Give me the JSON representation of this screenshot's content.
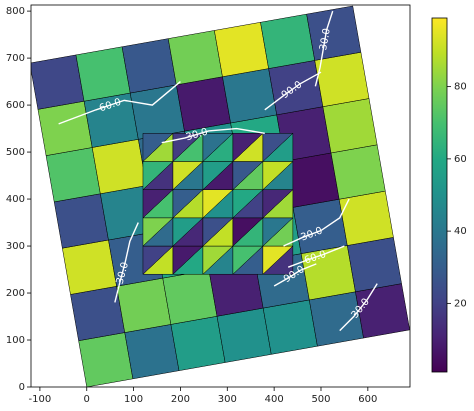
{
  "chart_data": {
    "type": "mesh",
    "xlim": [
      -119,
      690
    ],
    "ylim": [
      0,
      813
    ],
    "xticks": [
      -100,
      0,
      100,
      200,
      300,
      400,
      500,
      600
    ],
    "yticks": [
      0,
      100,
      200,
      300,
      400,
      500,
      600,
      700,
      800
    ],
    "colormap": "viridis",
    "clim": [
      1,
      99
    ],
    "cbar_ticks": [
      20,
      40,
      60,
      80
    ],
    "values": [
      [
        75,
        38,
        55,
        50,
        50,
        35,
        10
      ],
      [
        25,
        78,
        75,
        10,
        35,
        88,
        25
      ],
      [
        92,
        30,
        60,
        40,
        55,
        30,
        92
      ],
      [
        25,
        45,
        30,
        70,
        50,
        5,
        80
      ],
      [
        72,
        92,
        35,
        50,
        60,
        10,
        85
      ],
      [
        80,
        45,
        40,
        8,
        40,
        20,
        92
      ],
      [
        22,
        70,
        28,
        78,
        95,
        65,
        25
      ]
    ],
    "tri_values": [
      [
        90,
        20,
        60,
        8,
        45,
        85,
        30,
        70,
        15,
        95
      ],
      [
        35,
        80,
        12,
        55,
        90,
        25,
        65,
        5,
        78,
        40
      ],
      [
        70,
        10,
        88,
        30,
        50,
        95,
        20,
        60,
        85,
        12
      ],
      [
        15,
        65,
        40,
        92,
        8,
        55,
        75,
        28,
        45,
        90
      ],
      [
        85,
        30,
        70,
        18,
        62,
        38,
        92,
        10,
        55,
        25
      ]
    ],
    "contours": [
      {
        "label": "60.0",
        "points": [
          [
            -60,
            560
          ],
          [
            20,
            590
          ],
          [
            80,
            610
          ],
          [
            140,
            600
          ],
          [
            200,
            650
          ]
        ]
      },
      {
        "label": "30.0",
        "points": [
          [
            525,
            800
          ],
          [
            512,
            760
          ],
          [
            505,
            720
          ],
          [
            498,
            680
          ],
          [
            488,
            640
          ]
        ]
      },
      {
        "label": "90.0",
        "points": [
          [
            380,
            590
          ],
          [
            420,
            620
          ],
          [
            455,
            645
          ],
          [
            500,
            670
          ]
        ]
      },
      {
        "label": "30.0",
        "points": [
          [
            160,
            520
          ],
          [
            210,
            530
          ],
          [
            260,
            545
          ],
          [
            320,
            550
          ],
          [
            380,
            540
          ]
        ]
      },
      {
        "label": "30.0",
        "points": [
          [
            420,
            300
          ],
          [
            460,
            318
          ],
          [
            500,
            333
          ],
          [
            540,
            360
          ],
          [
            560,
            400
          ]
        ]
      },
      {
        "label": "60.0",
        "points": [
          [
            430,
            255
          ],
          [
            470,
            270
          ],
          [
            505,
            282
          ],
          [
            550,
            300
          ]
        ]
      },
      {
        "label": "90.0",
        "points": [
          [
            400,
            215
          ],
          [
            430,
            232
          ],
          [
            455,
            248
          ],
          [
            490,
            262
          ]
        ]
      },
      {
        "label": "30.0",
        "points": [
          [
            60,
            180
          ],
          [
            70,
            220
          ],
          [
            82,
            265
          ],
          [
            92,
            310
          ],
          [
            110,
            350
          ]
        ]
      },
      {
        "label": "30.0",
        "points": [
          [
            540,
            120
          ],
          [
            570,
            150
          ],
          [
            598,
            185
          ],
          [
            620,
            220
          ]
        ]
      }
    ]
  }
}
